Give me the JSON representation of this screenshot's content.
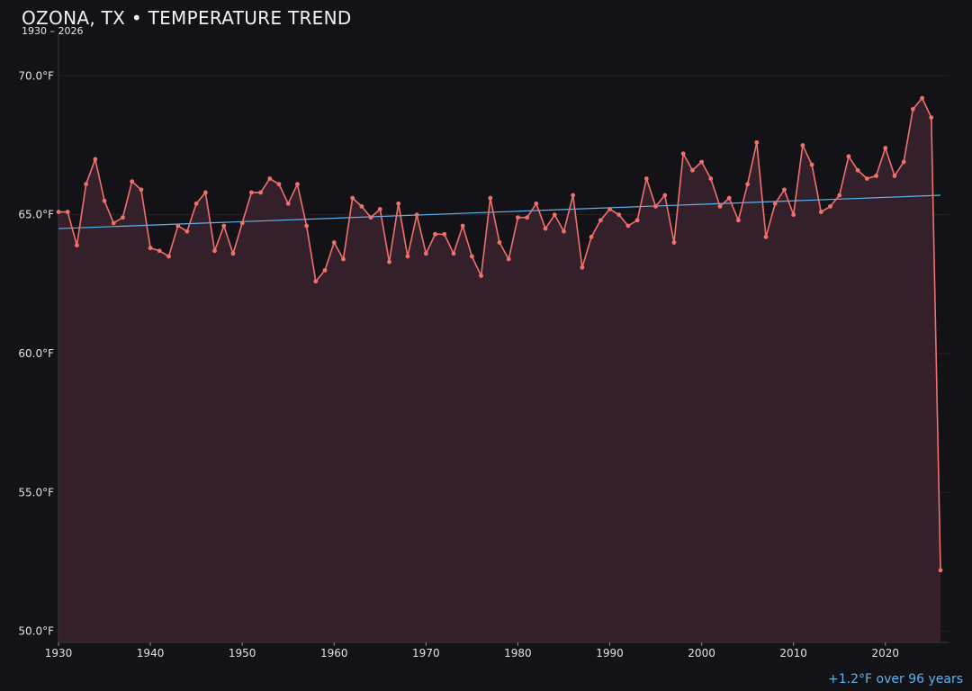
{
  "header": {
    "title": "OZONA, TX • TEMPERATURE TREND",
    "subtitle": "1930 – 2026"
  },
  "footer": {
    "trend_note": "+1.2°F over 96 years"
  },
  "colors": {
    "background": "#131217",
    "series_line": "#f0706c",
    "series_fill": "#34202a",
    "trend_line": "#5ab4f0",
    "grid": "#2a2329"
  },
  "chart_data": {
    "type": "line",
    "title": "OZONA, TX • TEMPERATURE TREND",
    "subtitle": "1930 – 2026",
    "xlabel": "",
    "ylabel": "",
    "xlim": [
      1930,
      2027
    ],
    "ylim": [
      49.6,
      71.5
    ],
    "x_ticks": [
      1930,
      1940,
      1950,
      1960,
      1970,
      1980,
      1990,
      2000,
      2010,
      2020
    ],
    "y_ticks": [
      50,
      55,
      60,
      65,
      70
    ],
    "y_tick_labels": [
      "50.0°F",
      "55.0°F",
      "60.0°F",
      "65.0°F",
      "70.0°F"
    ],
    "grid": "horizontal",
    "area_fill": true,
    "series": [
      {
        "x": [
          1930,
          1931,
          1932,
          1933,
          1934,
          1935,
          1936,
          1937,
          1938,
          1939,
          1940,
          1941,
          1942,
          1943,
          1944,
          1945,
          1946,
          1947,
          1948,
          1949,
          1950,
          1951,
          1952,
          1953,
          1954,
          1955,
          1956,
          1957,
          1958,
          1959,
          1960,
          1961,
          1962,
          1963,
          1964,
          1965,
          1966,
          1967,
          1968,
          1969,
          1970,
          1971,
          1972,
          1973,
          1974,
          1975,
          1976,
          1977,
          1978,
          1979,
          1980,
          1981,
          1982,
          1983,
          1984,
          1985,
          1986,
          1987,
          1988,
          1989,
          1990,
          1991,
          1992,
          1993,
          1994,
          1995,
          1996,
          1997,
          1998,
          1999,
          2000,
          2001,
          2002,
          2003,
          2004,
          2005,
          2006,
          2007,
          2008,
          2009,
          2010,
          2011,
          2012,
          2013,
          2014,
          2015,
          2016,
          2017,
          2018,
          2019,
          2020,
          2021,
          2022,
          2023,
          2024,
          2025,
          2026
        ],
        "values": [
          65.1,
          65.1,
          63.9,
          66.1,
          67.0,
          65.5,
          64.7,
          64.9,
          66.2,
          65.9,
          63.8,
          63.7,
          63.5,
          64.6,
          64.4,
          65.4,
          65.8,
          63.7,
          64.6,
          63.6,
          64.7,
          65.8,
          65.8,
          66.3,
          66.1,
          65.4,
          66.1,
          64.6,
          62.6,
          63.0,
          64.0,
          63.4,
          65.6,
          65.3,
          64.9,
          65.2,
          63.3,
          65.4,
          63.5,
          65.0,
          63.6,
          64.3,
          64.3,
          63.6,
          64.6,
          63.5,
          62.8,
          65.6,
          64.0,
          63.4,
          64.9,
          64.9,
          65.4,
          64.5,
          65.0,
          64.4,
          65.7,
          63.1,
          64.2,
          64.8,
          65.2,
          65.0,
          64.6,
          64.8,
          66.3,
          65.3,
          65.7,
          64.0,
          67.2,
          66.6,
          66.9,
          66.3,
          65.3,
          65.6,
          64.8,
          66.1,
          67.6,
          64.2,
          65.4,
          65.9,
          65.0,
          67.5,
          66.8,
          65.1,
          65.3,
          65.7,
          67.1,
          66.6,
          66.3,
          66.4,
          67.4,
          66.4,
          66.9,
          68.8,
          69.2,
          68.5,
          52.2
        ]
      }
    ],
    "trend": {
      "x": [
        1930,
        2026
      ],
      "values": [
        64.5,
        65.7
      ]
    },
    "annotation": "+1.2°F over 96 years"
  }
}
